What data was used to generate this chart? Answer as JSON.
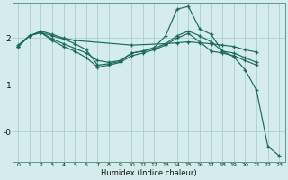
{
  "background_color": "#d4eceb",
  "grid_color": "#aacfcc",
  "line_color": "#1a6b5e",
  "xlabel": "Humidex (Indice chaleur)",
  "xlim": [
    -0.5,
    23.5
  ],
  "ylim": [
    -0.65,
    2.75
  ],
  "yticks": [
    0.0,
    1.0,
    2.0
  ],
  "ytick_labels": [
    "-0",
    "1",
    "2"
  ],
  "xtick_labels": [
    "0",
    "1",
    "2",
    "3",
    "4",
    "5",
    "6",
    "7",
    "8",
    "9",
    "10",
    "11",
    "12",
    "13",
    "14",
    "15",
    "16",
    "17",
    "18",
    "19",
    "20",
    "21",
    "22",
    "23"
  ],
  "lines": [
    {
      "x": [
        0,
        1,
        2,
        3,
        4,
        5,
        10,
        13,
        14,
        15,
        16,
        17,
        18,
        19,
        20,
        21
      ],
      "y": [
        1.85,
        2.05,
        2.15,
        2.08,
        2.0,
        1.95,
        1.85,
        1.88,
        1.9,
        1.92,
        1.9,
        1.88,
        1.85,
        1.82,
        1.75,
        1.7
      ]
    },
    {
      "x": [
        0,
        1,
        2,
        3,
        4,
        5,
        6,
        7,
        8,
        9,
        10,
        11,
        12,
        13,
        14,
        15,
        16,
        17,
        18,
        19,
        20,
        21,
        22,
        23
      ],
      "y": [
        1.82,
        2.05,
        2.12,
        2.05,
        1.98,
        1.88,
        1.75,
        1.42,
        1.45,
        1.5,
        1.68,
        1.72,
        1.8,
        2.05,
        2.62,
        2.68,
        2.2,
        2.08,
        1.72,
        1.6,
        1.32,
        0.88,
        -0.32,
        -0.52
      ]
    },
    {
      "x": [
        0,
        1,
        2,
        3,
        4,
        5,
        6,
        7,
        8,
        9,
        10,
        11,
        12,
        13,
        14,
        15,
        16,
        17,
        18,
        19,
        20,
        21
      ],
      "y": [
        1.82,
        2.05,
        2.12,
        1.95,
        1.82,
        1.72,
        1.58,
        1.38,
        1.42,
        1.48,
        1.62,
        1.68,
        1.75,
        1.85,
        2.0,
        2.1,
        1.92,
        1.72,
        1.68,
        1.62,
        1.52,
        1.42
      ]
    },
    {
      "x": [
        0,
        1,
        2,
        3,
        4,
        5,
        6,
        7,
        8,
        9,
        10,
        11,
        12,
        13,
        14,
        15,
        16,
        17,
        18,
        19,
        20,
        21
      ],
      "y": [
        1.82,
        2.05,
        2.12,
        1.98,
        1.88,
        1.78,
        1.68,
        1.52,
        1.48,
        1.52,
        1.68,
        1.72,
        1.78,
        1.88,
        2.05,
        2.15,
        2.05,
        1.92,
        1.72,
        1.68,
        1.58,
        1.48
      ]
    }
  ]
}
